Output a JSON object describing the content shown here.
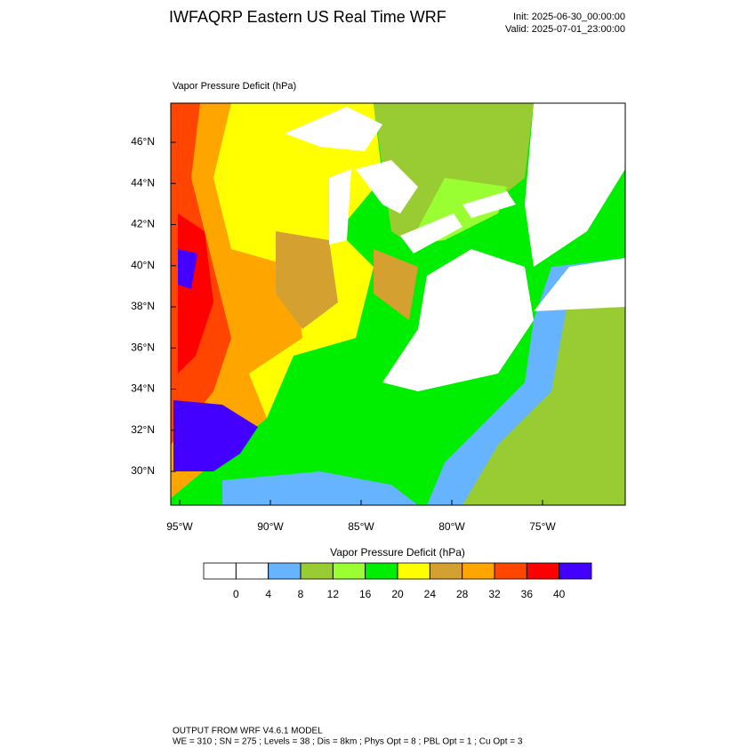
{
  "header": {
    "title": "IWFAQRP Eastern US Real Time WRF",
    "init": "Init: 2025-06-30_00:00:00",
    "valid": "Valid: 2025-07-01_23:00:00"
  },
  "map": {
    "field_label": "Vapor Pressure Deficit   (hPa)",
    "lat_labels": [
      "46°N",
      "44°N",
      "42°N",
      "40°N",
      "38°N",
      "36°N",
      "34°N",
      "32°N",
      "30°N"
    ],
    "lon_labels": [
      "95°W",
      "90°W",
      "85°W",
      "80°W",
      "75°W"
    ]
  },
  "colorbar": {
    "title": "Vapor Pressure Deficit   (hPa)",
    "levels": [
      0,
      4,
      8,
      12,
      16,
      20,
      24,
      28,
      32,
      36,
      40
    ],
    "colors": [
      "#ffffff",
      "#ffffff",
      "#66b3ff",
      "#99cc33",
      "#99ff33",
      "#00ee00",
      "#ffff00",
      "#d4a030",
      "#ffa500",
      "#ff4500",
      "#ff0000",
      "#4400ff"
    ]
  },
  "footer": {
    "line1": "OUTPUT FROM WRF V4.6.1 MODEL",
    "line2": "WE = 310 ; SN = 275 ; Levels = 38 ; Dis = 8km ; Phys Opt = 8 ; PBL Opt = 1 ; Cu Opt = 3"
  }
}
